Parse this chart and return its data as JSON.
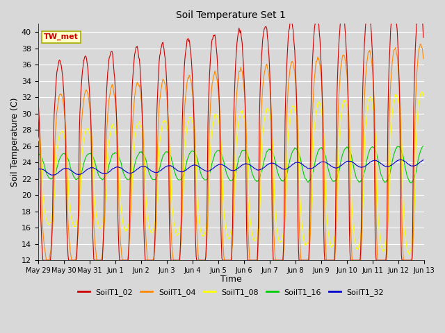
{
  "title": "Soil Temperature Set 1",
  "xlabel": "Time",
  "ylabel": "Soil Temperature (C)",
  "ylim": [
    12,
    41
  ],
  "yticks": [
    12,
    14,
    16,
    18,
    20,
    22,
    24,
    26,
    28,
    30,
    32,
    34,
    36,
    38,
    40
  ],
  "annotation": "TW_met",
  "legend": [
    "SoilT1_02",
    "SoilT1_04",
    "SoilT1_08",
    "SoilT1_16",
    "SoilT1_32"
  ],
  "colors": [
    "#cc0000",
    "#ff8800",
    "#ffff00",
    "#00cc00",
    "#0000cc"
  ],
  "bg_color": "#d8d8d8",
  "plot_bg": "#d8d8d8",
  "fig_width": 6.4,
  "fig_height": 4.8,
  "dpi": 100
}
